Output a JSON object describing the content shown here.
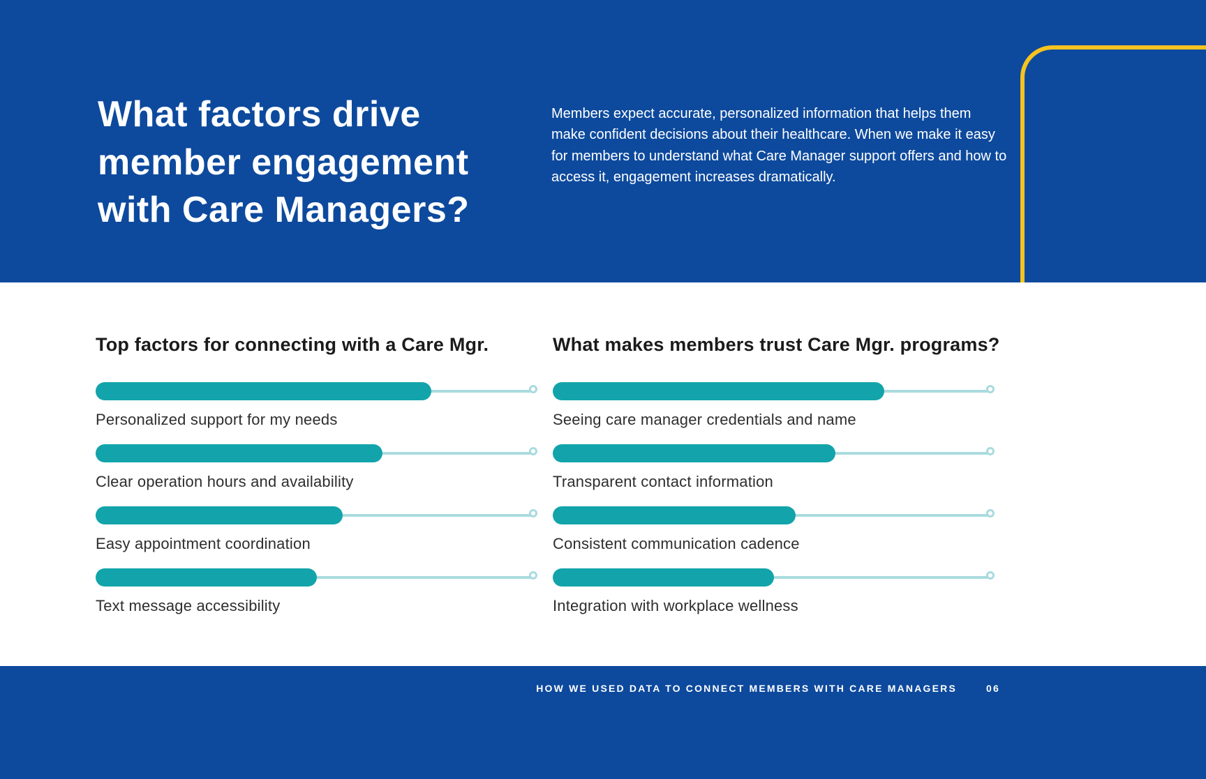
{
  "colors": {
    "navy": "#0d4a9d",
    "teal": "#12a4aa",
    "teal_track": "#a9dbdf",
    "yellow": "#f6c320",
    "text_dark": "#1b1b1b",
    "white": "#ffffff"
  },
  "header": {
    "title": "What factors drive member engagement with Care Managers?",
    "body": "Members expect accurate, personalized information that helps them make confident decisions about their healthcare. When we make it easy for members to understand what Care Manager support offers and how to access it, engagement increases dramatically."
  },
  "charts": {
    "left": {
      "title": "Top factors for connecting with a Care Mgr.",
      "items": [
        {
          "label": "Personalized support for my needs",
          "value": 76
        },
        {
          "label": "Clear operation hours and availability",
          "value": 65
        },
        {
          "label": "Easy appointment coordination",
          "value": 56
        },
        {
          "label": "Text message accessibility",
          "value": 50
        }
      ]
    },
    "right": {
      "title": "What makes members trust Care Mgr. programs?",
      "items": [
        {
          "label": "Seeing care manager credentials and name",
          "value": 75
        },
        {
          "label": "Transparent contact information",
          "value": 64
        },
        {
          "label": "Consistent communication cadence",
          "value": 55
        },
        {
          "label": "Integration with workplace wellness",
          "value": 50
        }
      ]
    }
  },
  "chart_data": [
    {
      "type": "bar",
      "orientation": "horizontal",
      "title": "Top factors for connecting with a Care Mgr.",
      "categories": [
        "Personalized support for my needs",
        "Clear operation hours and availability",
        "Easy appointment coordination",
        "Text message accessibility"
      ],
      "values": [
        76,
        65,
        56,
        50
      ],
      "xlabel": "",
      "ylabel": "",
      "xlim": [
        0,
        100
      ],
      "grid": false,
      "legend": false
    },
    {
      "type": "bar",
      "orientation": "horizontal",
      "title": "What makes members trust Care Mgr. programs?",
      "categories": [
        "Seeing care manager credentials and name",
        "Transparent contact information",
        "Consistent communication cadence",
        "Integration with workplace wellness"
      ],
      "values": [
        75,
        64,
        55,
        50
      ],
      "xlabel": "",
      "ylabel": "",
      "xlim": [
        0,
        100
      ],
      "grid": false,
      "legend": false
    }
  ],
  "footer": {
    "text": "HOW WE USED DATA TO CONNECT MEMBERS WITH CARE MANAGERS",
    "page_number": "06"
  }
}
